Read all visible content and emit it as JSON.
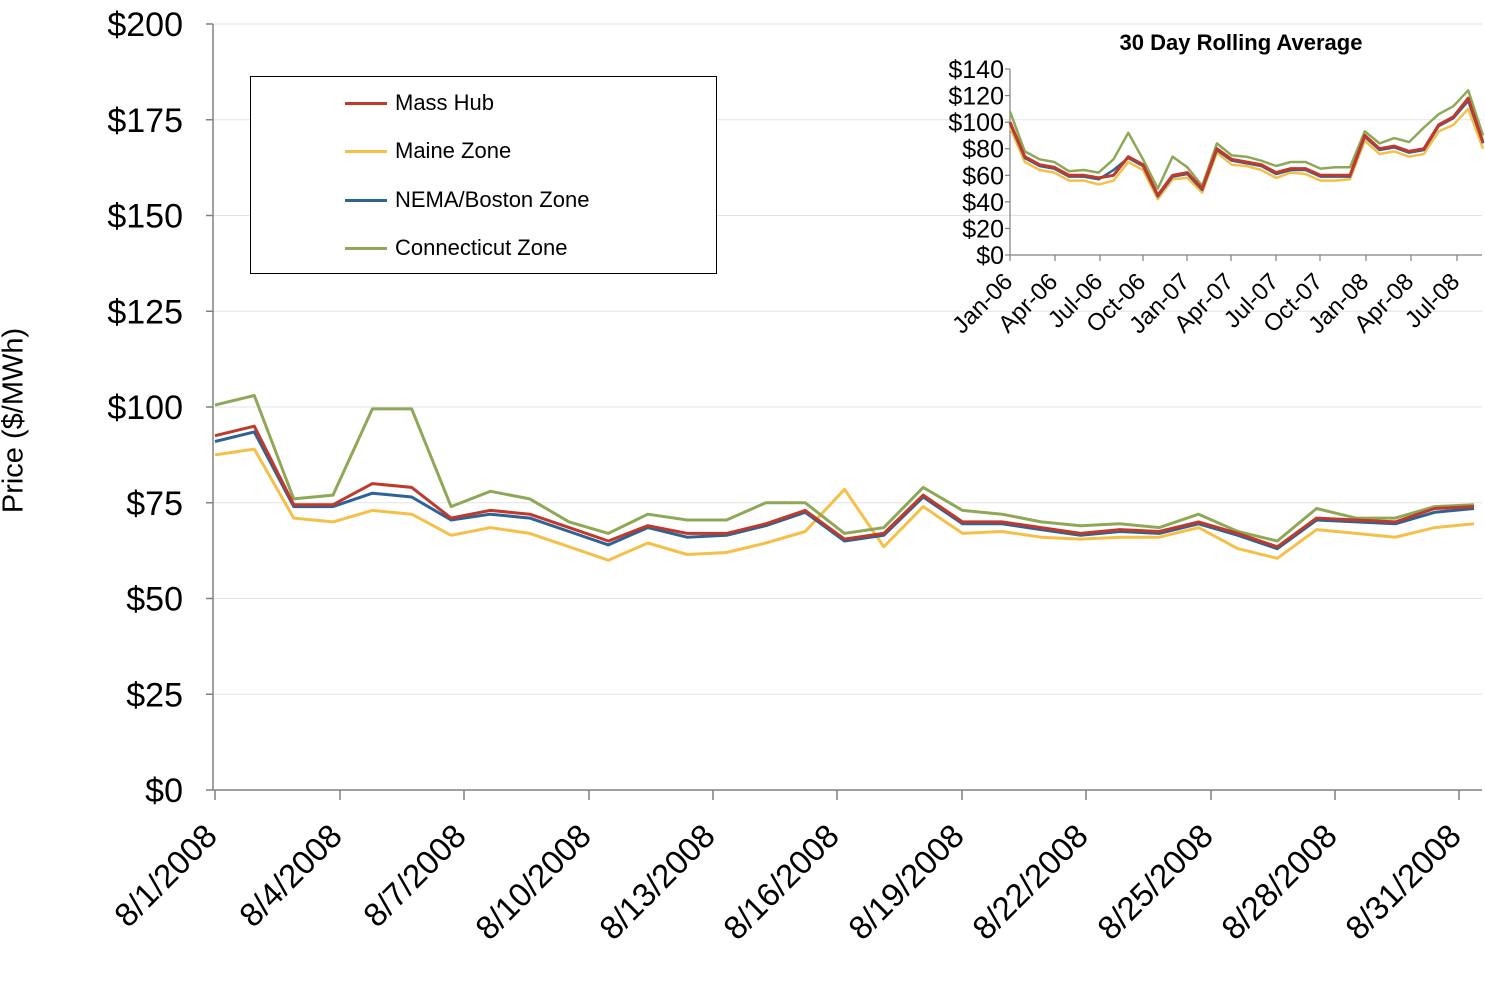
{
  "chart_data": [
    {
      "type": "line",
      "title": "",
      "xlabel": "",
      "ylabel": "Price ($/MWh)",
      "ylim": [
        0,
        200
      ],
      "y_ticks": [
        "$0",
        "$25",
        "$50",
        "$75",
        "$100",
        "$125",
        "$150",
        "$175",
        "$200"
      ],
      "y_tick_values": [
        0,
        25,
        50,
        75,
        100,
        125,
        150,
        175,
        200
      ],
      "grid": true,
      "legend_position": "top-left",
      "x_tick_labels": [
        "8/1/2008",
        "8/4/2008",
        "8/7/2008",
        "8/10/2008",
        "8/13/2008",
        "8/16/2008",
        "8/19/2008",
        "8/22/2008",
        "8/25/2008",
        "8/28/2008",
        "8/31/2008"
      ],
      "x": [
        "7/31/2008",
        "8/1/2008",
        "8/2/2008",
        "8/3/2008",
        "8/4/2008",
        "8/5/2008",
        "8/6/2008",
        "8/7/2008",
        "8/8/2008",
        "8/9/2008",
        "8/10/2008",
        "8/11/2008",
        "8/12/2008",
        "8/13/2008",
        "8/14/2008",
        "8/15/2008",
        "8/16/2008",
        "8/17/2008",
        "8/18/2008",
        "8/19/2008",
        "8/20/2008",
        "8/21/2008",
        "8/22/2008",
        "8/23/2008",
        "8/24/2008",
        "8/25/2008",
        "8/26/2008",
        "8/27/2008",
        "8/28/2008",
        "8/29/2008",
        "8/30/2008",
        "8/31/2008",
        "9/1/2008"
      ],
      "series": [
        {
          "name": "Mass Hub",
          "color": "#C0392B",
          "values": [
            92.5,
            95,
            74.5,
            74.5,
            80,
            79,
            71,
            73,
            72,
            68.5,
            65,
            69,
            67,
            67,
            69.5,
            73,
            65.5,
            67,
            77,
            70,
            70,
            68.5,
            67,
            68,
            67.5,
            70,
            67,
            63.5,
            71,
            70.5,
            70,
            73.5,
            74
          ]
        },
        {
          "name": "Maine Zone",
          "color": "#F5C04A",
          "values": [
            87.5,
            89,
            71,
            70,
            73,
            72,
            66.5,
            68.5,
            67,
            63.5,
            60,
            64.5,
            61.5,
            62,
            64.5,
            67.5,
            78.5,
            63.5,
            74,
            67,
            67.5,
            66,
            65.5,
            66,
            66,
            68.5,
            63,
            60.5,
            68,
            67,
            66,
            68.5,
            69.5
          ]
        },
        {
          "name": "NEMA/Boston Zone",
          "color": "#2E6396",
          "values": [
            91,
            93.5,
            74,
            74,
            77.5,
            76.5,
            70.5,
            72,
            71,
            67.5,
            64,
            68.5,
            66,
            66.5,
            69,
            72.5,
            65,
            66.5,
            76.5,
            69.5,
            69.5,
            68,
            66.5,
            67.5,
            67,
            69.5,
            66.5,
            63,
            70.5,
            70,
            69.5,
            72.5,
            73.5
          ]
        },
        {
          "name": "Connecticut Zone",
          "color": "#8FA857",
          "values": [
            100.5,
            103,
            76,
            77,
            99.5,
            99.5,
            74,
            78,
            76,
            70,
            67,
            72,
            70.5,
            70.5,
            75,
            75,
            67,
            68.5,
            79,
            73,
            72,
            70,
            69,
            69.5,
            68.5,
            72,
            67.5,
            65,
            73.5,
            71,
            71,
            74,
            74.5
          ]
        }
      ]
    },
    {
      "type": "line",
      "title": "30 Day Rolling Average",
      "xlabel": "",
      "ylabel": "",
      "ylim": [
        0,
        140
      ],
      "y_ticks": [
        "$0",
        "$20",
        "$40",
        "$60",
        "$80",
        "$100",
        "$120",
        "$140"
      ],
      "y_tick_values": [
        0,
        20,
        40,
        60,
        80,
        100,
        120,
        140
      ],
      "grid": false,
      "x_tick_labels": [
        "Jan-06",
        "Apr-06",
        "Jul-06",
        "Oct-06",
        "Jan-07",
        "Apr-07",
        "Jul-07",
        "Oct-07",
        "Jan-08",
        "Apr-08",
        "Jul-08"
      ],
      "x": [
        "Jan-06",
        "Feb-06",
        "Mar-06",
        "Apr-06",
        "May-06",
        "Jun-06",
        "Jul-06",
        "Aug-06",
        "Sep-06",
        "Oct-06",
        "Nov-06",
        "Dec-06",
        "Jan-07",
        "Feb-07",
        "Mar-07",
        "Apr-07",
        "May-07",
        "Jun-07",
        "Jul-07",
        "Aug-07",
        "Sep-07",
        "Oct-07",
        "Nov-07",
        "Dec-07",
        "Jan-08",
        "Feb-08",
        "Mar-08",
        "Apr-08",
        "May-08",
        "Jun-08",
        "Jul-08",
        "Aug-08",
        "Sep-08"
      ],
      "series": [
        {
          "name": "Mass Hub",
          "color": "#C0392B",
          "values": [
            100,
            74,
            68,
            66,
            60,
            60,
            58,
            60,
            74,
            68,
            45,
            60,
            62,
            50,
            80,
            72,
            70,
            68,
            62,
            65,
            65,
            60,
            60,
            60,
            90,
            80,
            82,
            78,
            80,
            98,
            104,
            118,
            85
          ]
        },
        {
          "name": "Maine Zone",
          "color": "#F5C04A",
          "values": [
            96,
            70,
            64,
            62,
            56,
            56,
            53,
            56,
            70,
            64,
            42,
            57,
            58,
            47,
            77,
            68,
            67,
            64,
            58,
            62,
            61,
            56,
            56,
            57,
            86,
            76,
            78,
            74,
            76,
            93,
            98,
            110,
            80
          ]
        },
        {
          "name": "NEMA/Boston Zone",
          "color": "#2E6396",
          "values": [
            99,
            73,
            67,
            65,
            59,
            59,
            57,
            64,
            73,
            67,
            44,
            59,
            61,
            49,
            79,
            71,
            69,
            67,
            61,
            64,
            64,
            59,
            59,
            59,
            89,
            79,
            81,
            77,
            79,
            97,
            103,
            116,
            84
          ]
        },
        {
          "name": "Connecticut Zone",
          "color": "#8FA857",
          "values": [
            108,
            78,
            72,
            70,
            63,
            64,
            62,
            72,
            92,
            72,
            50,
            74,
            66,
            52,
            84,
            75,
            74,
            71,
            67,
            70,
            70,
            65,
            66,
            66,
            93,
            84,
            88,
            85,
            96,
            106,
            112,
            124,
            90
          ]
        }
      ]
    }
  ]
}
